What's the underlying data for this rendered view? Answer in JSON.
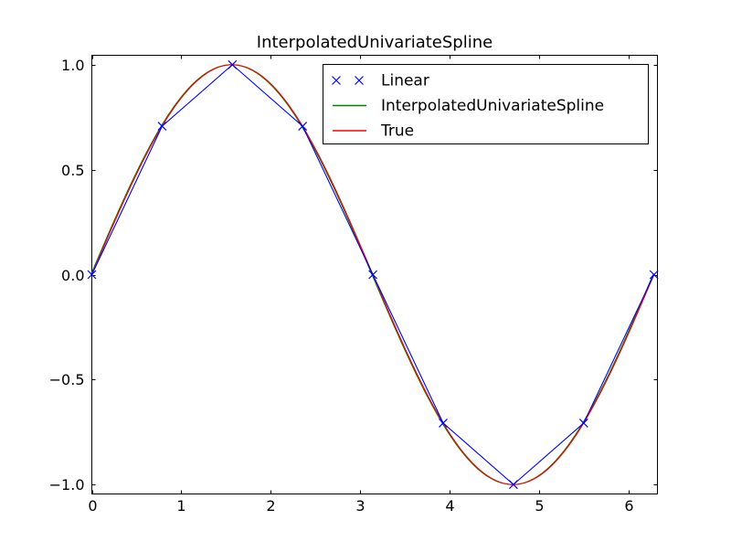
{
  "figure": {
    "background": "#ffffff",
    "frame_color": "#000000"
  },
  "chart_data": {
    "type": "line",
    "title": "InterpolatedUnivariateSpline",
    "xlabel": "",
    "ylabel": "",
    "xlim": [
      0,
      6.322
    ],
    "ylim": [
      -1.045,
      1.045
    ],
    "grid": false,
    "xticks": {
      "values": [
        0,
        1,
        2,
        3,
        4,
        5,
        6
      ],
      "labels": [
        "0",
        "1",
        "2",
        "3",
        "4",
        "5",
        "6"
      ]
    },
    "yticks": {
      "values": [
        -1.0,
        -0.5,
        0.0,
        0.5,
        1.0
      ],
      "labels": [
        "−1.0",
        "−0.5",
        "0.0",
        "0.5",
        "1.0"
      ]
    },
    "knots": {
      "x": [
        0.0,
        0.7854,
        1.5708,
        2.3562,
        3.1416,
        3.927,
        4.7124,
        5.4978,
        6.2832
      ],
      "y": [
        0.0,
        0.7071,
        1.0,
        0.7071,
        0.0,
        -0.7071,
        -1.0,
        -0.7071,
        0.0
      ]
    },
    "series": [
      {
        "name": "Linear",
        "color": "#0000ff",
        "render": "polyline-through-knots",
        "marker": "x"
      },
      {
        "name": "InterpolatedUnivariateSpline",
        "color": "#008000",
        "render": "smooth-sine",
        "range": [
          0,
          6.2832
        ]
      },
      {
        "name": "True",
        "color": "#ff0000",
        "render": "smooth-sine",
        "range": [
          0,
          6.2832
        ]
      }
    ],
    "legend": {
      "position": "upper right",
      "entries": [
        {
          "label": "Linear",
          "color": "#0000ff",
          "type": "marker",
          "marker": "x",
          "num_points": 2
        },
        {
          "label": "InterpolatedUnivariateSpline",
          "color": "#008000",
          "type": "line"
        },
        {
          "label": "True",
          "color": "#ff0000",
          "type": "line"
        }
      ]
    }
  }
}
